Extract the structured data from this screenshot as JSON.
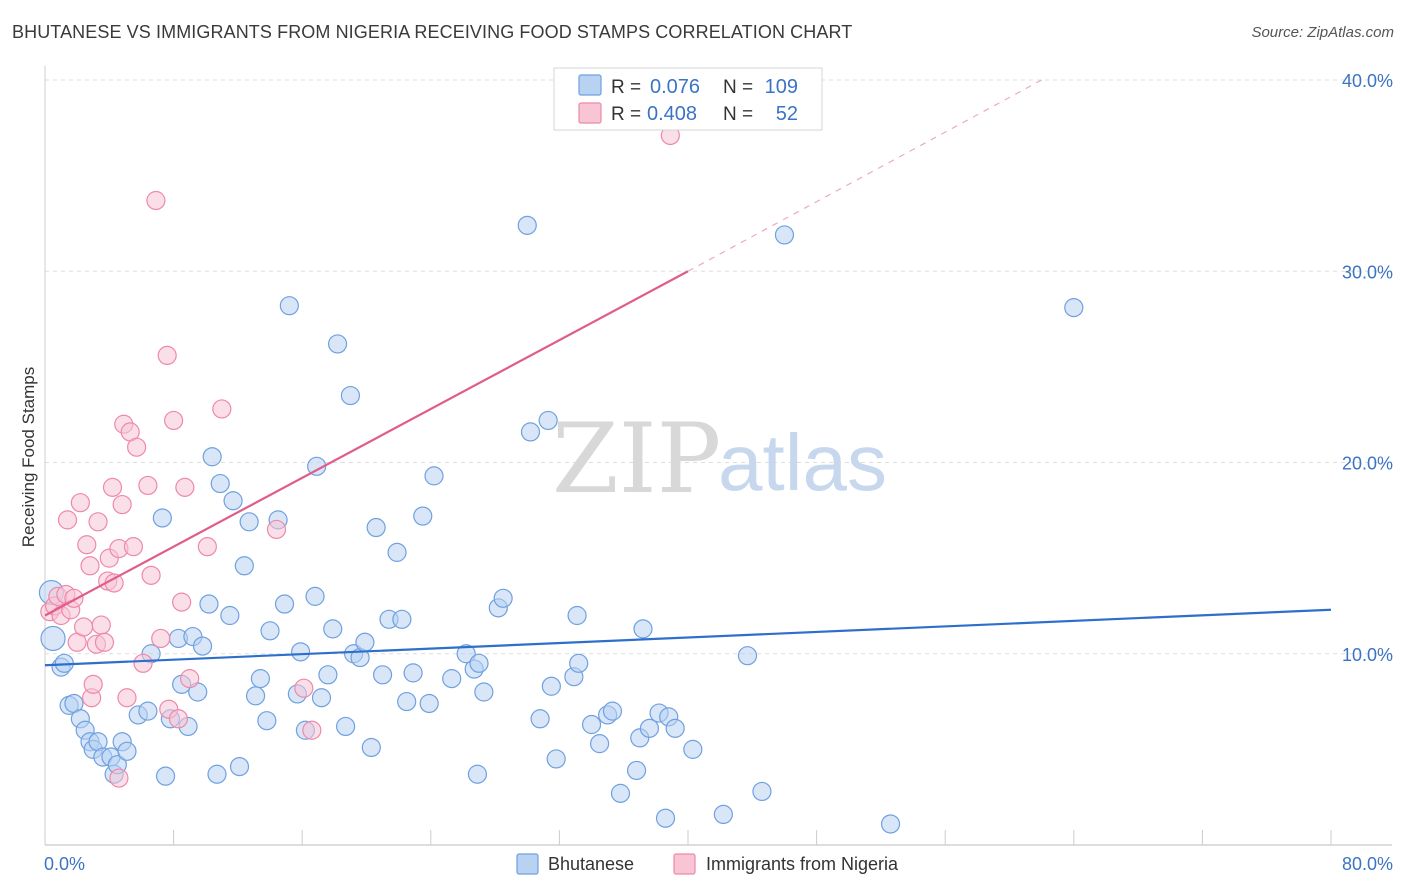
{
  "title": "BHUTANESE VS IMMIGRANTS FROM NIGERIA RECEIVING FOOD STAMPS CORRELATION CHART",
  "source": "Source: ZipAtlas.com",
  "watermark": {
    "zip": "ZIP",
    "atlas": "atlas"
  },
  "chart_data": {
    "type": "scatter",
    "title": "BHUTANESE VS IMMIGRANTS FROM NIGERIA RECEIVING FOOD STAMPS CORRELATION CHART",
    "xlabel": "",
    "ylabel": "Receiving Food Stamps",
    "xlim": [
      0,
      80
    ],
    "ylim": [
      0,
      40
    ],
    "x_tick_labels": {
      "min": "0.0%",
      "max": "80.0%"
    },
    "y_ticks": [
      {
        "value": 10,
        "label": "10.0%"
      },
      {
        "value": 20,
        "label": "20.0%"
      },
      {
        "value": 30,
        "label": "30.0%"
      },
      {
        "value": 40,
        "label": "40.0%"
      }
    ],
    "legend": [
      {
        "name": "Bhutanese",
        "r_label": "R =",
        "r": "0.076",
        "n_label": "N =",
        "n": "109",
        "color": "#6fa1e0",
        "fill": "#b8d2f2"
      },
      {
        "name": "Immigrants from Nigeria",
        "r_label": "R =",
        "r": "0.408",
        "n_label": "N =",
        "n": "52",
        "color": "#ee89a8",
        "fill": "#f8c5d5"
      }
    ],
    "series": [
      {
        "name": "Bhutanese",
        "color": "#6fa1e0",
        "trend": {
          "x0": 0,
          "y0": 9.4,
          "x1": 80,
          "y1": 12.3,
          "color": "#2f6fcc"
        },
        "points": [
          [
            0.4,
            13.2
          ],
          [
            0.5,
            10.8
          ],
          [
            1,
            9.3
          ],
          [
            1.2,
            9.5
          ],
          [
            1.5,
            7.3
          ],
          [
            1.8,
            7.4
          ],
          [
            2.2,
            6.6
          ],
          [
            2.5,
            6
          ],
          [
            2.8,
            5.4
          ],
          [
            3,
            5
          ],
          [
            3.3,
            5.4
          ],
          [
            3.6,
            4.6
          ],
          [
            4.1,
            4.6
          ],
          [
            4.3,
            3.7
          ],
          [
            4.5,
            4.2
          ],
          [
            4.8,
            5.4
          ],
          [
            5.1,
            4.9
          ],
          [
            5.8,
            6.8
          ],
          [
            6.4,
            7
          ],
          [
            6.6,
            10
          ],
          [
            7.3,
            17.1
          ],
          [
            7.5,
            3.6
          ],
          [
            7.8,
            6.6
          ],
          [
            8.3,
            10.8
          ],
          [
            8.5,
            8.4
          ],
          [
            8.9,
            6.2
          ],
          [
            9.2,
            10.9
          ],
          [
            9.5,
            8
          ],
          [
            9.8,
            10.4
          ],
          [
            10.2,
            12.6
          ],
          [
            10.4,
            20.3
          ],
          [
            10.7,
            3.7
          ],
          [
            10.9,
            18.9
          ],
          [
            11.5,
            12
          ],
          [
            11.7,
            18
          ],
          [
            12.1,
            4.1
          ],
          [
            12.4,
            14.6
          ],
          [
            12.7,
            16.9
          ],
          [
            13.1,
            7.8
          ],
          [
            13.4,
            8.7
          ],
          [
            13.8,
            6.5
          ],
          [
            14,
            11.2
          ],
          [
            14.5,
            17
          ],
          [
            14.9,
            12.6
          ],
          [
            15.2,
            28.2
          ],
          [
            15.7,
            7.9
          ],
          [
            15.9,
            10.1
          ],
          [
            16.2,
            6
          ],
          [
            16.8,
            13
          ],
          [
            16.9,
            19.8
          ],
          [
            17.2,
            7.7
          ],
          [
            17.6,
            8.9
          ],
          [
            17.9,
            11.3
          ],
          [
            18.2,
            26.2
          ],
          [
            18.7,
            6.2
          ],
          [
            19,
            23.5
          ],
          [
            19.2,
            10
          ],
          [
            19.6,
            9.8
          ],
          [
            19.9,
            10.6
          ],
          [
            20.3,
            5.1
          ],
          [
            20.6,
            16.6
          ],
          [
            21,
            8.9
          ],
          [
            21.4,
            11.8
          ],
          [
            21.9,
            15.3
          ],
          [
            22.2,
            11.8
          ],
          [
            22.5,
            7.5
          ],
          [
            22.9,
            9
          ],
          [
            23.5,
            17.2
          ],
          [
            23.9,
            7.4
          ],
          [
            24.2,
            19.3
          ],
          [
            25.3,
            8.7
          ],
          [
            26.2,
            10
          ],
          [
            26.7,
            9.2
          ],
          [
            27,
            9.5
          ],
          [
            26.9,
            3.7
          ],
          [
            27.3,
            8
          ],
          [
            28.2,
            12.4
          ],
          [
            28.5,
            12.9
          ],
          [
            30.2,
            21.6
          ],
          [
            30,
            32.4
          ],
          [
            30.8,
            6.6
          ],
          [
            31.3,
            22.2
          ],
          [
            31.5,
            8.3
          ],
          [
            31.8,
            4.5
          ],
          [
            32.9,
            8.8
          ],
          [
            33.2,
            9.5
          ],
          [
            33.1,
            12
          ],
          [
            34,
            6.3
          ],
          [
            34.5,
            5.3
          ],
          [
            35,
            6.8
          ],
          [
            35.3,
            7
          ],
          [
            35.8,
            2.7
          ],
          [
            36.8,
            3.9
          ],
          [
            37,
            5.6
          ],
          [
            37.2,
            11.3
          ],
          [
            37.6,
            6.1
          ],
          [
            38.2,
            6.9
          ],
          [
            38.6,
            1.4
          ],
          [
            38.8,
            6.7
          ],
          [
            39.2,
            6.1
          ],
          [
            40.3,
            5
          ],
          [
            42.2,
            1.6
          ],
          [
            43.7,
            9.9
          ],
          [
            44.6,
            2.8
          ],
          [
            46,
            31.9
          ],
          [
            52.6,
            1.1
          ],
          [
            64,
            28.1
          ]
        ]
      },
      {
        "name": "Immigrants from Nigeria",
        "color": "#ee89a8",
        "trend": {
          "x0": 0,
          "y0": 12,
          "x1": 40,
          "y1": 30,
          "color": "#e05c8a"
        },
        "trend_dashed": {
          "x0": 40,
          "y0": 30,
          "x1": 62,
          "y1": 40
        },
        "points": [
          [
            0.3,
            12.2
          ],
          [
            0.6,
            12.5
          ],
          [
            0.8,
            13
          ],
          [
            1,
            12
          ],
          [
            1.3,
            13.1
          ],
          [
            1.6,
            12.3
          ],
          [
            1.4,
            17
          ],
          [
            1.8,
            12.9
          ],
          [
            2,
            10.6
          ],
          [
            2.2,
            17.9
          ],
          [
            2.4,
            11.4
          ],
          [
            2.6,
            15.7
          ],
          [
            2.8,
            14.6
          ],
          [
            2.9,
            7.7
          ],
          [
            3,
            8.4
          ],
          [
            3.2,
            10.5
          ],
          [
            3.3,
            16.9
          ],
          [
            3.5,
            11.5
          ],
          [
            3.7,
            10.6
          ],
          [
            3.9,
            13.8
          ],
          [
            4,
            15
          ],
          [
            4.2,
            18.7
          ],
          [
            4.3,
            13.7
          ],
          [
            4.6,
            15.5
          ],
          [
            4.8,
            17.8
          ],
          [
            4.9,
            22
          ],
          [
            4.6,
            3.5
          ],
          [
            5.1,
            7.7
          ],
          [
            5.3,
            21.6
          ],
          [
            5.5,
            15.6
          ],
          [
            5.7,
            20.8
          ],
          [
            6.1,
            9.5
          ],
          [
            6.4,
            18.8
          ],
          [
            6.6,
            14.1
          ],
          [
            6.9,
            33.7
          ],
          [
            7.2,
            10.8
          ],
          [
            7.6,
            25.6
          ],
          [
            7.7,
            7.1
          ],
          [
            8,
            22.2
          ],
          [
            8.3,
            6.6
          ],
          [
            8.5,
            12.7
          ],
          [
            8.7,
            18.7
          ],
          [
            9,
            8.7
          ],
          [
            10.1,
            15.6
          ],
          [
            11,
            22.8
          ],
          [
            14.4,
            16.5
          ],
          [
            16.1,
            8.2
          ],
          [
            16.6,
            6
          ],
          [
            38.9,
            37.1
          ]
        ]
      }
    ]
  }
}
